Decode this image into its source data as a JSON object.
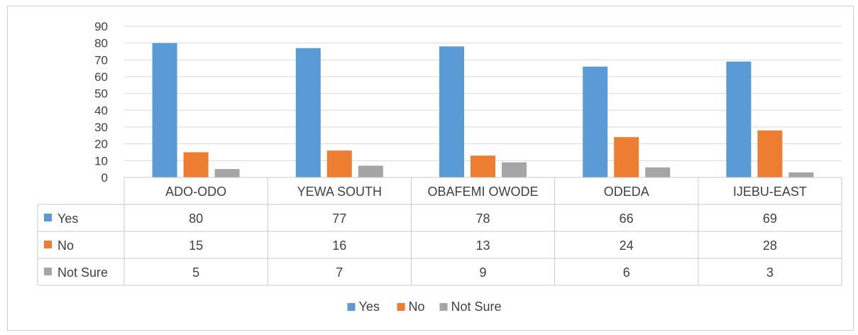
{
  "chart_data": {
    "type": "bar",
    "categories": [
      "ADO-ODO",
      "YEWA SOUTH",
      "OBAFEMI OWODE",
      "ODEDA",
      "IJEBU-EAST"
    ],
    "series": [
      {
        "name": "Yes",
        "values": [
          80,
          77,
          78,
          66,
          69
        ],
        "color": "#5b9bd5"
      },
      {
        "name": "No",
        "values": [
          15,
          16,
          13,
          24,
          28
        ],
        "color": "#ed7d31"
      },
      {
        "name": "Not Sure",
        "values": [
          5,
          7,
          9,
          6,
          3
        ],
        "color": "#a5a5a5"
      }
    ],
    "ylim": [
      0,
      90
    ],
    "yticks": [
      0,
      10,
      20,
      30,
      40,
      50,
      60,
      70,
      80,
      90
    ],
    "grid": true,
    "legend": "bottom",
    "data_table": true
  }
}
